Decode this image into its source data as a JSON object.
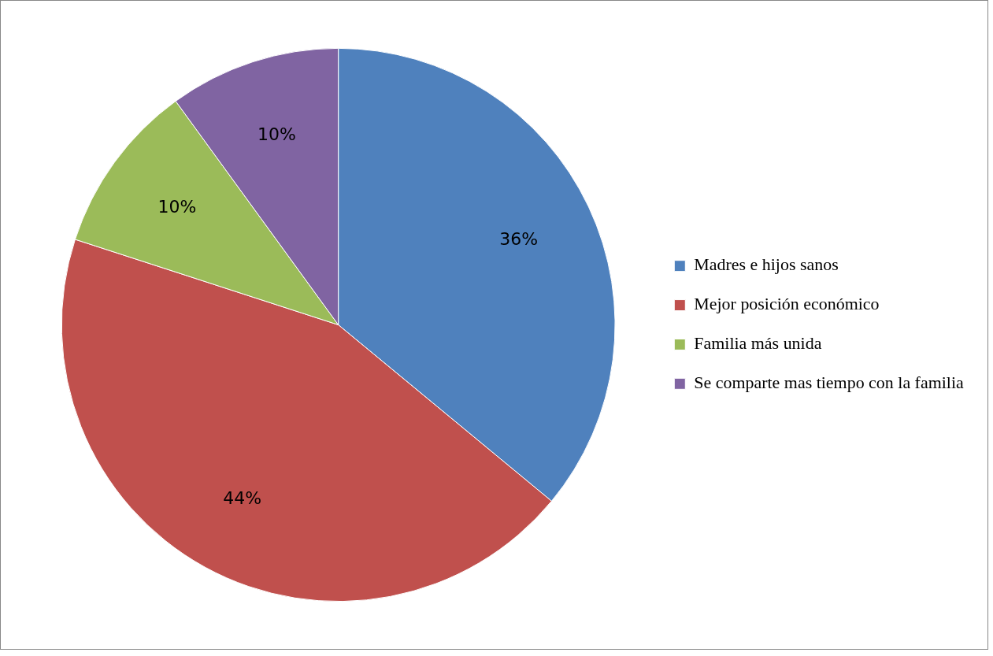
{
  "chart_data": {
    "type": "pie",
    "categories": [
      "Madres e hijos sanos",
      "Mejor posición económico",
      "Familia más unida",
      "Se comparte mas tiempo con la familia"
    ],
    "values": [
      36,
      44,
      10,
      10
    ],
    "colors": [
      "#4f81bd",
      "#c0504d",
      "#9bbb59",
      "#8064a2"
    ],
    "value_labels": [
      "36%",
      "44%",
      "10%",
      "10%"
    ],
    "legend": "right"
  }
}
